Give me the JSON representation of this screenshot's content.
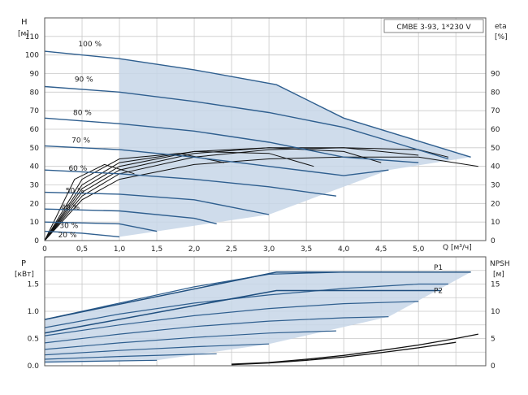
{
  "chart_data": [
    {
      "type": "line",
      "label_box": "CMBE 3-93, 1*230 V",
      "y_axis_left": {
        "label": "H",
        "unit": "[м]",
        "range": [
          0,
          120
        ],
        "ticks": [
          0,
          10,
          20,
          30,
          40,
          50,
          60,
          70,
          80,
          90,
          100,
          110
        ]
      },
      "y_axis_right": {
        "label": "eta",
        "unit": "[%]",
        "range": [
          0,
          120
        ],
        "ticks": [
          0,
          10,
          20,
          30,
          40,
          50,
          60,
          70,
          80,
          90
        ]
      },
      "x_axis": {
        "label": "Q [м³/ч]",
        "range": [
          0,
          5.9
        ],
        "ticks": [
          0,
          0.5,
          1.0,
          1.5,
          2.0,
          2.5,
          3.0,
          3.5,
          4.0,
          4.5,
          5.0
        ]
      },
      "x_tick_labels": [
        "0",
        "0,5",
        "1,0",
        "1,5",
        "2,0",
        "2,5",
        "3,0",
        "3,5",
        "4,0",
        "4,5",
        "5,0"
      ],
      "grid": true,
      "series": [
        {
          "name": "100 %",
          "x": [
            0,
            1.0,
            2.0,
            3.1,
            4.0,
            5.7
          ],
          "y": [
            102,
            98,
            92,
            84,
            66,
            45
          ]
        },
        {
          "name": "90 %",
          "x": [
            0,
            1.0,
            2.0,
            3.0,
            4.0,
            5.4
          ],
          "y": [
            83,
            80,
            75,
            69,
            61,
            44
          ]
        },
        {
          "name": "80 %",
          "x": [
            0,
            1.0,
            2.0,
            3.0,
            4.0,
            5.0
          ],
          "y": [
            66,
            63,
            59,
            53,
            45,
            42
          ]
        },
        {
          "name": "70 %",
          "x": [
            0,
            1.0,
            2.0,
            3.0,
            4.0,
            4.6
          ],
          "y": [
            51,
            49,
            45,
            40,
            35,
            38
          ]
        },
        {
          "name": "60 %",
          "x": [
            0,
            1.0,
            2.0,
            3.0,
            3.9
          ],
          "y": [
            38,
            36,
            33,
            29,
            24
          ]
        },
        {
          "name": "50 %",
          "x": [
            0,
            1.0,
            2.0,
            3.0
          ],
          "y": [
            26,
            25,
            22,
            14
          ]
        },
        {
          "name": "40 %",
          "x": [
            0,
            1.0,
            2.0,
            2.3
          ],
          "y": [
            17,
            16,
            12,
            9
          ]
        },
        {
          "name": "30 %",
          "x": [
            0,
            1.0,
            1.5
          ],
          "y": [
            10,
            9,
            5
          ]
        },
        {
          "name": "20 %",
          "x": [
            0,
            0.5,
            1.0
          ],
          "y": [
            5,
            4,
            2
          ]
        }
      ],
      "efficiency_curves": [
        {
          "x": [
            0,
            0.5,
            1.0,
            2.0,
            3.0,
            4.0,
            5.0,
            5.8
          ],
          "y": [
            0,
            22,
            33,
            41,
            44,
            45,
            45,
            40
          ]
        },
        {
          "x": [
            0,
            0.5,
            1.0,
            2.0,
            3.0,
            4.0,
            5.0,
            5.4
          ],
          "y": [
            0,
            24,
            36,
            45,
            49,
            50,
            49,
            45
          ]
        },
        {
          "x": [
            0,
            0.5,
            1.0,
            2.0,
            3.0,
            4.0,
            5.0
          ],
          "y": [
            0,
            26,
            38,
            47,
            50,
            50,
            46
          ]
        },
        {
          "x": [
            0,
            0.5,
            1.0,
            2.0,
            3.0,
            4.0,
            4.5
          ],
          "y": [
            0,
            28,
            40,
            48,
            50,
            48,
            42
          ]
        },
        {
          "x": [
            0,
            0.5,
            1.0,
            2.0,
            3.0,
            3.6
          ],
          "y": [
            0,
            30,
            42,
            48,
            47,
            40
          ]
        },
        {
          "x": [
            0,
            0.5,
            1.0,
            1.8,
            2.4
          ],
          "y": [
            0,
            33,
            44,
            47,
            42
          ]
        },
        {
          "x": [
            0,
            0.4,
            0.8,
            1.2
          ],
          "y": [
            0,
            33,
            41,
            36
          ]
        }
      ]
    },
    {
      "type": "line",
      "y_axis_left": {
        "label": "P",
        "unit": "[кВт]",
        "range": [
          0,
          2.0
        ],
        "ticks": [
          0.0,
          0.5,
          1.0,
          1.5
        ]
      },
      "y_axis_left_tick_labels": [
        "0.0",
        "0.5",
        "1.0",
        "1.5"
      ],
      "y_axis_right": {
        "label": "NPSH",
        "unit": "[м]",
        "range": [
          0,
          20
        ],
        "ticks": [
          0,
          5,
          10,
          15
        ]
      },
      "x_axis": {
        "range": [
          0,
          5.9
        ]
      },
      "grid": true,
      "series": [
        {
          "name": "P1",
          "x": [
            0,
            3.1,
            5.7
          ],
          "y": [
            0.85,
            1.72,
            1.72
          ]
        },
        {
          "name": "P2",
          "x": [
            0,
            3.1,
            5.3
          ],
          "y": [
            0.6,
            1.38,
            1.38
          ]
        }
      ],
      "power_curves": [
        {
          "x": [
            0,
            1.0,
            2.0,
            3.0,
            4.0,
            5.0,
            5.7
          ],
          "y": [
            0.85,
            1.15,
            1.45,
            1.68,
            1.72,
            1.72,
            1.72
          ]
        },
        {
          "x": [
            0,
            1.0,
            2.0,
            3.0,
            4.0,
            5.0,
            5.4
          ],
          "y": [
            0.7,
            0.95,
            1.15,
            1.3,
            1.42,
            1.5,
            1.5
          ]
        },
        {
          "x": [
            0,
            1.0,
            2.0,
            3.0,
            4.0,
            5.0
          ],
          "y": [
            0.55,
            0.75,
            0.92,
            1.05,
            1.14,
            1.18
          ]
        },
        {
          "x": [
            0,
            1.0,
            2.0,
            3.0,
            4.0,
            4.6
          ],
          "y": [
            0.42,
            0.58,
            0.72,
            0.82,
            0.88,
            0.9
          ]
        },
        {
          "x": [
            0,
            1.0,
            2.0,
            3.0,
            3.9
          ],
          "y": [
            0.3,
            0.42,
            0.52,
            0.6,
            0.64
          ]
        },
        {
          "x": [
            0,
            1.0,
            2.0,
            3.0
          ],
          "y": [
            0.2,
            0.28,
            0.35,
            0.4
          ]
        },
        {
          "x": [
            0,
            1.0,
            2.0,
            2.3
          ],
          "y": [
            0.12,
            0.17,
            0.21,
            0.22
          ]
        },
        {
          "x": [
            0,
            1.0,
            1.5
          ],
          "y": [
            0.07,
            0.09,
            0.1
          ]
        }
      ],
      "npsh_curves": [
        {
          "x": [
            2.5,
            3.0,
            3.5,
            4.0,
            4.5,
            5.0,
            5.5,
            5.8
          ],
          "y": [
            0.3,
            0.6,
            1.2,
            1.9,
            2.8,
            3.8,
            5.0,
            5.8
          ]
        },
        {
          "x": [
            2.5,
            3.0,
            3.5,
            4.0,
            4.5,
            5.0,
            5.5
          ],
          "y": [
            0.2,
            0.5,
            1.0,
            1.6,
            2.4,
            3.3,
            4.3
          ]
        }
      ]
    }
  ]
}
